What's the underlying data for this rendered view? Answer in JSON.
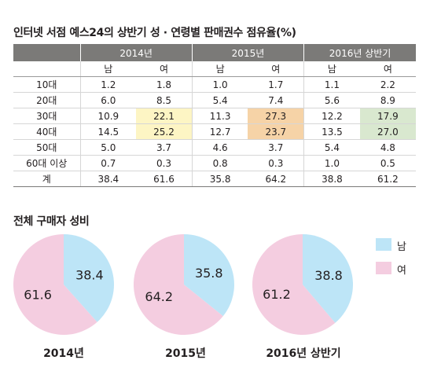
{
  "title": "인터넷 서점 예스24의 상반기 성 · 연령별 판매권수 점유율(%)",
  "table": {
    "years": [
      "2014년",
      "2015년",
      "2016년 상반기"
    ],
    "sexes": [
      "남",
      "여",
      "남",
      "여",
      "남",
      "여"
    ],
    "rows": [
      {
        "label": "10대",
        "values": [
          "1.2",
          "1.8",
          "1.0",
          "1.7",
          "1.1",
          "2.2"
        ]
      },
      {
        "label": "20대",
        "values": [
          "6.0",
          "8.5",
          "5.4",
          "7.4",
          "5.6",
          "8.9"
        ]
      },
      {
        "label": "30대",
        "values": [
          "10.9",
          "22.1",
          "11.3",
          "27.3",
          "12.2",
          "17.9"
        ]
      },
      {
        "label": "40대",
        "values": [
          "14.5",
          "25.2",
          "12.7",
          "23.7",
          "13.5",
          "27.0"
        ]
      },
      {
        "label": "50대",
        "values": [
          "5.0",
          "3.7",
          "4.6",
          "3.7",
          "5.4",
          "4.8"
        ]
      },
      {
        "label": "60대 이상",
        "values": [
          "0.7",
          "0.3",
          "0.8",
          "0.3",
          "1.0",
          "0.5"
        ]
      },
      {
        "label": "계",
        "values": [
          "38.4",
          "61.6",
          "35.8",
          "64.2",
          "38.8",
          "61.2"
        ]
      }
    ],
    "highlights": [
      {
        "row": 2,
        "col": 1,
        "color": "#fdf5c4"
      },
      {
        "row": 3,
        "col": 1,
        "color": "#fdf5c4"
      },
      {
        "row": 2,
        "col": 3,
        "color": "#f6d3a7"
      },
      {
        "row": 3,
        "col": 3,
        "color": "#f6d3a7"
      },
      {
        "row": 2,
        "col": 5,
        "color": "#d9e8cf"
      },
      {
        "row": 3,
        "col": 5,
        "color": "#d9e8cf"
      }
    ]
  },
  "pie_section_title": "전체 구매자 성비",
  "legend": [
    {
      "label": "남",
      "color": "#bde5f7"
    },
    {
      "label": "여",
      "color": "#f4cde0"
    }
  ],
  "chart_data": [
    {
      "type": "pie",
      "title": "2014년",
      "labels": [
        "남",
        "여"
      ],
      "values": [
        38.4,
        61.6
      ],
      "colors": [
        "#bde5f7",
        "#f4cde0"
      ]
    },
    {
      "type": "pie",
      "title": "2015년",
      "labels": [
        "남",
        "여"
      ],
      "values": [
        35.8,
        64.2
      ],
      "colors": [
        "#bde5f7",
        "#f4cde0"
      ]
    },
    {
      "type": "pie",
      "title": "2016년 상반기",
      "labels": [
        "남",
        "여"
      ],
      "values": [
        38.8,
        61.2
      ],
      "colors": [
        "#bde5f7",
        "#f4cde0"
      ]
    }
  ]
}
